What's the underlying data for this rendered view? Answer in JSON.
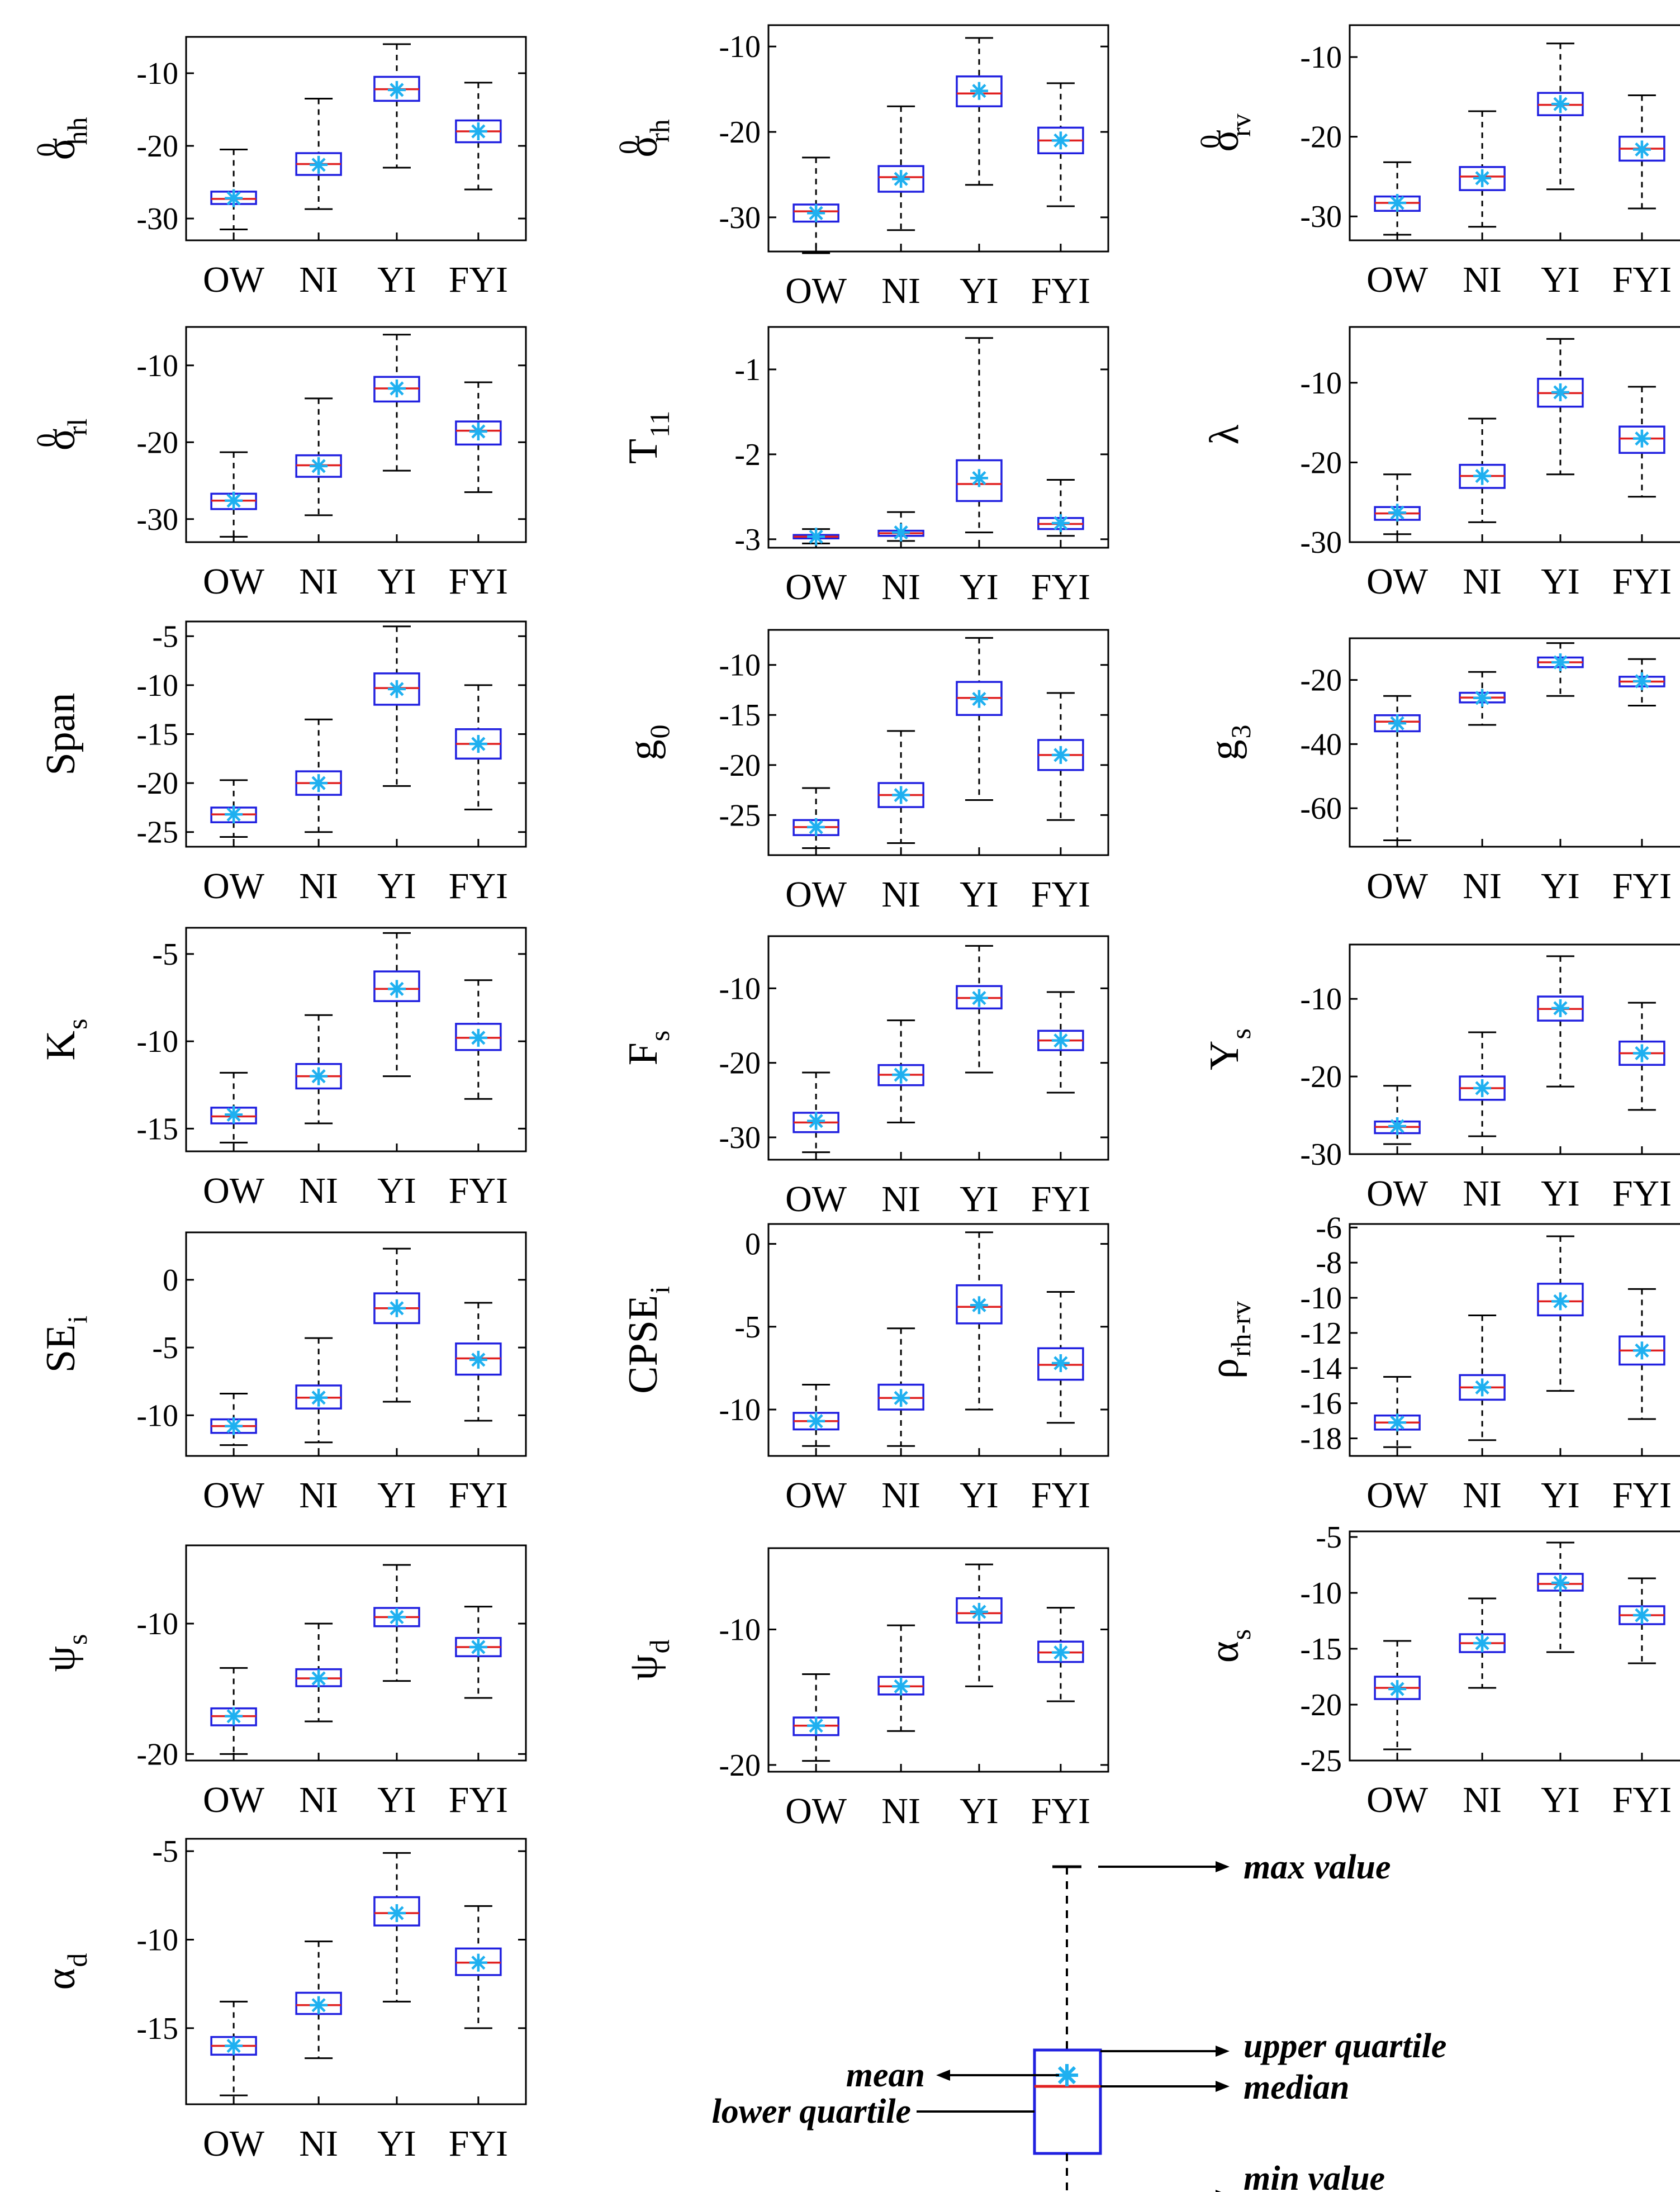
{
  "colors": {
    "box": "#2020e0",
    "median": "#e02020",
    "mean": "#1fb0f0",
    "whisker": "#000000",
    "axes": "#000000"
  },
  "chart_data": [
    {
      "type": "box",
      "ylabel": {
        "main": "σ",
        "sup": "0",
        "sub": "hh"
      },
      "ylim": [
        -33,
        -5
      ],
      "yticks": [
        -30,
        -20,
        -10
      ],
      "categories": [
        "OW",
        "NI",
        "YI",
        "FYI"
      ],
      "boxes": [
        {
          "min": -31.5,
          "q1": -28,
          "median": -27.3,
          "q3": -26.3,
          "max": -20.5,
          "mean": -27.2
        },
        {
          "min": -28.7,
          "q1": -24,
          "median": -22.5,
          "q3": -21,
          "max": -13.5,
          "mean": -22.6
        },
        {
          "min": -23,
          "q1": -13.8,
          "median": -12.2,
          "q3": -10.5,
          "max": -6,
          "mean": -12.3
        },
        {
          "min": -26,
          "q1": -19.5,
          "median": -18,
          "q3": -16.5,
          "max": -11.3,
          "mean": -18
        }
      ]
    },
    {
      "type": "box",
      "ylabel": {
        "main": "σ",
        "sup": "0",
        "sub": "rh"
      },
      "ylim": [
        -34,
        -7.5
      ],
      "yticks": [
        -30,
        -20,
        -10
      ],
      "categories": [
        "OW",
        "NI",
        "YI",
        "FYI"
      ],
      "boxes": [
        {
          "min": -34.2,
          "q1": -30.5,
          "median": -29.3,
          "q3": -28.5,
          "max": -23,
          "mean": -29.5
        },
        {
          "min": -31.5,
          "q1": -27,
          "median": -25.3,
          "q3": -24,
          "max": -17,
          "mean": -25.5
        },
        {
          "min": -26.2,
          "q1": -17,
          "median": -15.5,
          "q3": -13.5,
          "max": -9,
          "mean": -15.2
        },
        {
          "min": -28.7,
          "q1": -22.5,
          "median": -21,
          "q3": -19.5,
          "max": -14.3,
          "mean": -21
        }
      ]
    },
    {
      "type": "box",
      "ylabel": {
        "main": "σ",
        "sup": "0",
        "sub": "rv"
      },
      "ylim": [
        -33,
        -6
      ],
      "yticks": [
        -30,
        -20,
        -10
      ],
      "categories": [
        "OW",
        "NI",
        "YI",
        "FYI"
      ],
      "boxes": [
        {
          "min": -32.3,
          "q1": -29.3,
          "median": -28.3,
          "q3": -27.5,
          "max": -23.2,
          "mean": -28.3
        },
        {
          "min": -31.3,
          "q1": -26.7,
          "median": -25,
          "q3": -23.8,
          "max": -16.8,
          "mean": -25.2
        },
        {
          "min": -26.6,
          "q1": -17.3,
          "median": -16,
          "q3": -14.5,
          "max": -8.3,
          "mean": -15.9
        },
        {
          "min": -29,
          "q1": -23,
          "median": -21.5,
          "q3": -20,
          "max": -14.8,
          "mean": -21.6
        }
      ]
    },
    {
      "type": "box",
      "ylabel": {
        "main": "σ",
        "sup": "0",
        "sub": "rl"
      },
      "ylim": [
        -33,
        -5
      ],
      "yticks": [
        -30,
        -20,
        -10
      ],
      "categories": [
        "OW",
        "NI",
        "YI",
        "FYI"
      ],
      "boxes": [
        {
          "min": -32.3,
          "q1": -28.7,
          "median": -27.6,
          "q3": -26.7,
          "max": -21.3,
          "mean": -27.6
        },
        {
          "min": -29.5,
          "q1": -24.5,
          "median": -23,
          "q3": -21.7,
          "max": -14.3,
          "mean": -23.1
        },
        {
          "min": -23.7,
          "q1": -14.7,
          "median": -13,
          "q3": -11.5,
          "max": -6,
          "mean": -13
        },
        {
          "min": -26.5,
          "q1": -20.3,
          "median": -18.5,
          "q3": -17.3,
          "max": -12.2,
          "mean": -18.6
        }
      ]
    },
    {
      "type": "box",
      "ylabel": {
        "main": "T",
        "sup": "",
        "sub": "11"
      },
      "ylim": [
        -3.1,
        -0.5
      ],
      "yticks": [
        -3,
        -2,
        -1
      ],
      "categories": [
        "OW",
        "NI",
        "YI",
        "FYI"
      ],
      "boxes": [
        {
          "min": -3.05,
          "q1": -2.99,
          "median": -2.97,
          "q3": -2.95,
          "max": -2.88,
          "mean": -2.97
        },
        {
          "min": -3.02,
          "q1": -2.96,
          "median": -2.93,
          "q3": -2.9,
          "max": -2.68,
          "mean": -2.92
        },
        {
          "min": -2.92,
          "q1": -2.55,
          "median": -2.35,
          "q3": -2.07,
          "max": -0.63,
          "mean": -2.28
        },
        {
          "min": -2.96,
          "q1": -2.88,
          "median": -2.82,
          "q3": -2.75,
          "max": -2.3,
          "mean": -2.81
        }
      ]
    },
    {
      "type": "box",
      "ylabel": {
        "main": "λ",
        "sup": "",
        "sub": ""
      },
      "ylim": [
        -30,
        -3
      ],
      "yticks": [
        -30,
        -20,
        -10
      ],
      "categories": [
        "OW",
        "NI",
        "YI",
        "FYI"
      ],
      "boxes": [
        {
          "min": -29,
          "q1": -27.2,
          "median": -26.4,
          "q3": -25.6,
          "max": -21.5,
          "mean": -26.3
        },
        {
          "min": -27.5,
          "q1": -23.2,
          "median": -21.7,
          "q3": -20.3,
          "max": -14.5,
          "mean": -21.7
        },
        {
          "min": -21.5,
          "q1": -13,
          "median": -11.3,
          "q3": -9.5,
          "max": -4.5,
          "mean": -11.2
        },
        {
          "min": -24.3,
          "q1": -18.8,
          "median": -17,
          "q3": -15.5,
          "max": -10.5,
          "mean": -17
        }
      ]
    },
    {
      "type": "box",
      "ylabel": {
        "main": "Span",
        "sup": "",
        "sub": ""
      },
      "ylim": [
        -26.5,
        -3.5
      ],
      "yticks": [
        -25,
        -20,
        -15,
        -10,
        -5
      ],
      "categories": [
        "OW",
        "NI",
        "YI",
        "FYI"
      ],
      "boxes": [
        {
          "min": -25.5,
          "q1": -24,
          "median": -23.2,
          "q3": -22.5,
          "max": -19.7,
          "mean": -23.2
        },
        {
          "min": -25,
          "q1": -21.2,
          "median": -20,
          "q3": -18.8,
          "max": -13.5,
          "mean": -20
        },
        {
          "min": -20.3,
          "q1": -12,
          "median": -10.3,
          "q3": -8.8,
          "max": -4,
          "mean": -10.4
        },
        {
          "min": -22.7,
          "q1": -17.5,
          "median": -16,
          "q3": -14.5,
          "max": -10,
          "mean": -16
        }
      ]
    },
    {
      "type": "box",
      "ylabel": {
        "main": "g",
        "sup": "",
        "sub": "0"
      },
      "ylim": [
        -29,
        -6.5
      ],
      "yticks": [
        -25,
        -20,
        -15,
        -10
      ],
      "categories": [
        "OW",
        "NI",
        "YI",
        "FYI"
      ],
      "boxes": [
        {
          "min": -28.3,
          "q1": -27,
          "median": -26.2,
          "q3": -25.5,
          "max": -22.3,
          "mean": -26.2
        },
        {
          "min": -27.8,
          "q1": -24.2,
          "median": -23,
          "q3": -21.8,
          "max": -16.6,
          "mean": -23
        },
        {
          "min": -23.5,
          "q1": -15,
          "median": -13.3,
          "q3": -11.7,
          "max": -7.3,
          "mean": -13.4
        },
        {
          "min": -25.5,
          "q1": -20.5,
          "median": -19,
          "q3": -17.5,
          "max": -12.8,
          "mean": -19
        }
      ]
    },
    {
      "type": "box",
      "ylabel": {
        "main": "g",
        "sup": "",
        "sub": "3"
      },
      "ylim": [
        -72,
        -7
      ],
      "yticks": [
        -60,
        -40,
        -20
      ],
      "categories": [
        "OW",
        "NI",
        "YI",
        "FYI"
      ],
      "boxes": [
        {
          "min": -70,
          "q1": -36,
          "median": -33,
          "q3": -31,
          "max": -25,
          "mean": -33.5
        },
        {
          "min": -34,
          "q1": -27,
          "median": -25.5,
          "q3": -24,
          "max": -17.5,
          "mean": -25.6
        },
        {
          "min": -25,
          "q1": -16,
          "median": -14.5,
          "q3": -13,
          "max": -8.5,
          "mean": -14.5
        },
        {
          "min": -28,
          "q1": -22,
          "median": -20.5,
          "q3": -19,
          "max": -13.5,
          "mean": -20.4
        }
      ]
    },
    {
      "type": "box",
      "ylabel": {
        "main": "K",
        "sup": "",
        "sub": "s"
      },
      "ylim": [
        -16.3,
        -3.5
      ],
      "yticks": [
        -15,
        -10,
        -5
      ],
      "categories": [
        "OW",
        "NI",
        "YI",
        "FYI"
      ],
      "boxes": [
        {
          "min": -15.8,
          "q1": -14.7,
          "median": -14.3,
          "q3": -13.8,
          "max": -11.8,
          "mean": -14.2
        },
        {
          "min": -14.7,
          "q1": -12.7,
          "median": -12,
          "q3": -11.3,
          "max": -8.5,
          "mean": -12
        },
        {
          "min": -12,
          "q1": -7.7,
          "median": -7,
          "q3": -6,
          "max": -3.8,
          "mean": -7
        },
        {
          "min": -13.3,
          "q1": -10.5,
          "median": -9.8,
          "q3": -9,
          "max": -6.5,
          "mean": -9.8
        }
      ]
    },
    {
      "type": "box",
      "ylabel": {
        "main": "F",
        "sup": "",
        "sub": "s"
      },
      "ylim": [
        -33,
        -3
      ],
      "yticks": [
        -30,
        -20,
        -10
      ],
      "categories": [
        "OW",
        "NI",
        "YI",
        "FYI"
      ],
      "boxes": [
        {
          "min": -32,
          "q1": -29.3,
          "median": -28,
          "q3": -26.7,
          "max": -21.3,
          "mean": -27.8
        },
        {
          "min": -28,
          "q1": -23,
          "median": -21.6,
          "q3": -20.3,
          "max": -14.3,
          "mean": -21.6
        },
        {
          "min": -21.3,
          "q1": -12.7,
          "median": -11.3,
          "q3": -9.7,
          "max": -4.3,
          "mean": -11.3
        },
        {
          "min": -24,
          "q1": -18.3,
          "median": -17,
          "q3": -15.7,
          "max": -10.5,
          "mean": -17
        }
      ]
    },
    {
      "type": "box",
      "ylabel": {
        "main": "Y",
        "sup": "",
        "sub": "s"
      },
      "ylim": [
        -30,
        -3
      ],
      "yticks": [
        -30,
        -20,
        -10
      ],
      "categories": [
        "OW",
        "NI",
        "YI",
        "FYI"
      ],
      "boxes": [
        {
          "min": -28.7,
          "q1": -27.3,
          "median": -26.5,
          "q3": -25.8,
          "max": -21.2,
          "mean": -26.4
        },
        {
          "min": -27.7,
          "q1": -23,
          "median": -21.5,
          "q3": -20,
          "max": -14.3,
          "mean": -21.5
        },
        {
          "min": -21.3,
          "q1": -12.8,
          "median": -11.3,
          "q3": -9.7,
          "max": -4.5,
          "mean": -11.2
        },
        {
          "min": -24.3,
          "q1": -18.5,
          "median": -17,
          "q3": -15.5,
          "max": -10.5,
          "mean": -17
        }
      ]
    },
    {
      "type": "box",
      "ylabel": {
        "main": "SE",
        "sup": "",
        "sub": "i"
      },
      "ylim": [
        -13,
        3.5
      ],
      "yticks": [
        -10,
        -5,
        0
      ],
      "categories": [
        "OW",
        "NI",
        "YI",
        "FYI"
      ],
      "boxes": [
        {
          "min": -12.2,
          "q1": -11.3,
          "median": -10.8,
          "q3": -10.3,
          "max": -8.4,
          "mean": -10.8
        },
        {
          "min": -12,
          "q1": -9.5,
          "median": -8.7,
          "q3": -7.8,
          "max": -4.3,
          "mean": -8.7
        },
        {
          "min": -9,
          "q1": -3.2,
          "median": -2.1,
          "q3": -1,
          "max": 2.3,
          "mean": -2.1
        },
        {
          "min": -10.4,
          "q1": -7,
          "median": -5.8,
          "q3": -4.7,
          "max": -1.7,
          "mean": -5.9
        }
      ]
    },
    {
      "type": "box",
      "ylabel": {
        "main": "CPSE",
        "sup": "",
        "sub": "i"
      },
      "ylim": [
        -12.8,
        1.2
      ],
      "yticks": [
        -10,
        -5,
        0
      ],
      "categories": [
        "OW",
        "NI",
        "YI",
        "FYI"
      ],
      "boxes": [
        {
          "min": -12.2,
          "q1": -11.2,
          "median": -10.7,
          "q3": -10.2,
          "max": -8.5,
          "mean": -10.7
        },
        {
          "min": -12.2,
          "q1": -10,
          "median": -9.3,
          "q3": -8.5,
          "max": -5.1,
          "mean": -9.3
        },
        {
          "min": -10,
          "q1": -4.8,
          "median": -3.8,
          "q3": -2.5,
          "max": 0.7,
          "mean": -3.7
        },
        {
          "min": -10.8,
          "q1": -8.2,
          "median": -7.3,
          "q3": -6.3,
          "max": -2.9,
          "mean": -7.2
        }
      ]
    },
    {
      "type": "box",
      "ylabel": {
        "main": "ρ",
        "sup": "",
        "sub": "rh-rv"
      },
      "ylim": [
        -19,
        -5.8
      ],
      "yticks": [
        -18,
        -16,
        -14,
        -12,
        -10,
        -8,
        -6
      ],
      "categories": [
        "OW",
        "NI",
        "YI",
        "FYI"
      ],
      "boxes": [
        {
          "min": -18.5,
          "q1": -17.5,
          "median": -17.1,
          "q3": -16.7,
          "max": -14.5,
          "mean": -17.1
        },
        {
          "min": -18.1,
          "q1": -15.8,
          "median": -15.1,
          "q3": -14.4,
          "max": -11,
          "mean": -15.1
        },
        {
          "min": -15.3,
          "q1": -11,
          "median": -10.2,
          "q3": -9.2,
          "max": -6.5,
          "mean": -10.2
        },
        {
          "min": -16.9,
          "q1": -13.8,
          "median": -13,
          "q3": -12.2,
          "max": -9.5,
          "mean": -13
        }
      ]
    },
    {
      "type": "box",
      "ylabel": {
        "main": "ψ",
        "sup": "",
        "sub": "s"
      },
      "ylim": [
        -20.5,
        -4
      ],
      "yticks": [
        -20,
        -10
      ],
      "categories": [
        "OW",
        "NI",
        "YI",
        "FYI"
      ],
      "boxes": [
        {
          "min": -20,
          "q1": -17.8,
          "median": -17.1,
          "q3": -16.5,
          "max": -13.4,
          "mean": -17.1
        },
        {
          "min": -17.5,
          "q1": -14.8,
          "median": -14.2,
          "q3": -13.5,
          "max": -10,
          "mean": -14.2
        },
        {
          "min": -14.4,
          "q1": -10.2,
          "median": -9.5,
          "q3": -8.8,
          "max": -5.5,
          "mean": -9.5
        },
        {
          "min": -15.7,
          "q1": -12.5,
          "median": -11.8,
          "q3": -11.1,
          "max": -8.7,
          "mean": -11.8
        }
      ]
    },
    {
      "type": "box",
      "ylabel": {
        "main": "ψ",
        "sup": "",
        "sub": "d"
      },
      "ylim": [
        -20.5,
        -4
      ],
      "yticks": [
        -20,
        -10
      ],
      "categories": [
        "OW",
        "NI",
        "YI",
        "FYI"
      ],
      "boxes": [
        {
          "min": -19.7,
          "q1": -17.8,
          "median": -17.1,
          "q3": -16.5,
          "max": -13.3,
          "mean": -17.1
        },
        {
          "min": -17.5,
          "q1": -14.8,
          "median": -14.2,
          "q3": -13.5,
          "max": -9.7,
          "mean": -14.2
        },
        {
          "min": -14.2,
          "q1": -9.5,
          "median": -8.8,
          "q3": -7.7,
          "max": -5.2,
          "mean": -8.7
        },
        {
          "min": -15.3,
          "q1": -12.4,
          "median": -11.7,
          "q3": -10.9,
          "max": -8.4,
          "mean": -11.7
        }
      ]
    },
    {
      "type": "box",
      "ylabel": {
        "main": "α",
        "sup": "",
        "sub": "s"
      },
      "ylim": [
        -25,
        -4.5
      ],
      "yticks": [
        -25,
        -20,
        -15,
        -10,
        -5
      ],
      "categories": [
        "OW",
        "NI",
        "YI",
        "FYI"
      ],
      "boxes": [
        {
          "min": -24,
          "q1": -19.5,
          "median": -18.5,
          "q3": -17.5,
          "max": -14.3,
          "mean": -18.6
        },
        {
          "min": -18.5,
          "q1": -15.3,
          "median": -14.5,
          "q3": -13.7,
          "max": -10.5,
          "mean": -14.5
        },
        {
          "min": -15.3,
          "q1": -9.8,
          "median": -9.2,
          "q3": -8.3,
          "max": -5.5,
          "mean": -9.1
        },
        {
          "min": -16.3,
          "q1": -12.8,
          "median": -12,
          "q3": -11.2,
          "max": -8.7,
          "mean": -12
        }
      ]
    },
    {
      "type": "box",
      "ylabel": {
        "main": "α",
        "sup": "",
        "sub": "d"
      },
      "ylim": [
        -19.3,
        -4.3
      ],
      "yticks": [
        -15,
        -10,
        -5
      ],
      "categories": [
        "OW",
        "NI",
        "YI",
        "FYI"
      ],
      "boxes": [
        {
          "min": -18.8,
          "q1": -16.5,
          "median": -16,
          "q3": -15.5,
          "max": -13.5,
          "mean": -16
        },
        {
          "min": -16.7,
          "q1": -14.2,
          "median": -13.7,
          "q3": -13,
          "max": -10.1,
          "mean": -13.7
        },
        {
          "min": -13.5,
          "q1": -9.2,
          "median": -8.5,
          "q3": -7.6,
          "max": -5.1,
          "mean": -8.5
        },
        {
          "min": -15,
          "q1": -12,
          "median": -11.3,
          "q3": -10.5,
          "max": -8.1,
          "mean": -11.3
        }
      ]
    }
  ],
  "legend": {
    "max_label": "max value",
    "upper_label": "upper quartile",
    "median_label": "median",
    "min_label": "min value",
    "mean_label": "mean",
    "lower_label": "lower quartile"
  }
}
